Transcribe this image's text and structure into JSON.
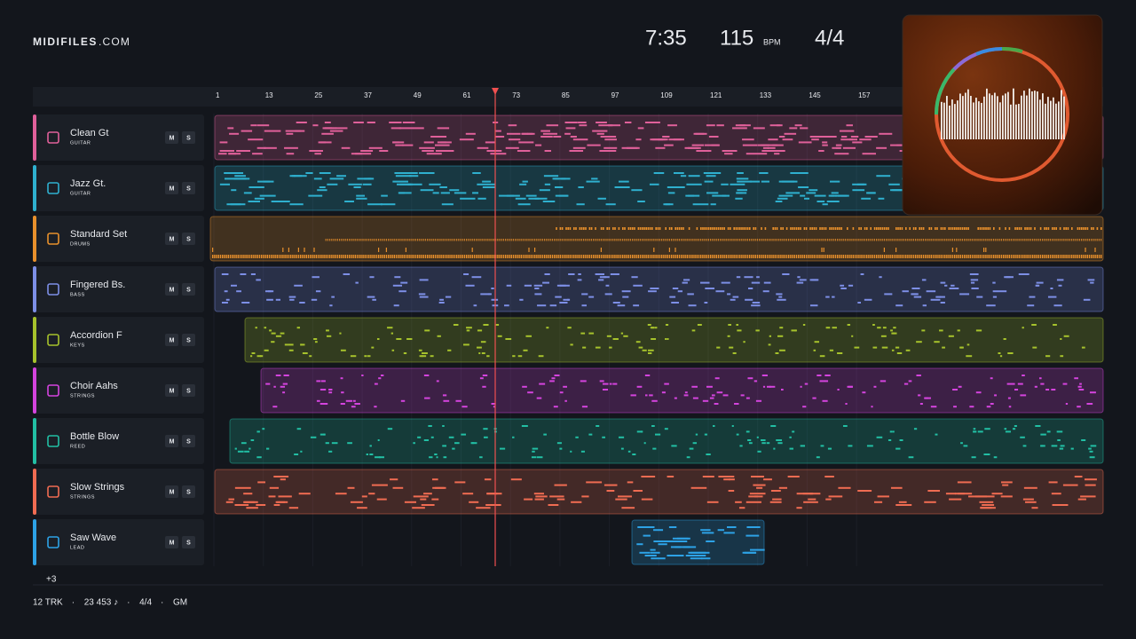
{
  "header": {
    "brand": "MIDIFILES",
    "brand_suffix": ".COM"
  },
  "transport": {
    "time": "7:35",
    "tempo": "115",
    "tempo_unit": "BPM",
    "meter": "4/4"
  },
  "ruler": {
    "marks": [
      "1",
      "13",
      "25",
      "37",
      "49",
      "61",
      "73",
      "85",
      "97",
      "109",
      "121",
      "133",
      "145",
      "157"
    ]
  },
  "tracks": [
    {
      "name": "Clean Gt",
      "category": "GUITAR",
      "mute": "M",
      "solo": "S",
      "color": "#e0609a"
    },
    {
      "name": "Jazz Gt.",
      "category": "GUITAR",
      "mute": "M",
      "solo": "S",
      "color": "#2fb0cf"
    },
    {
      "name": "Standard Set",
      "category": "DRUMS",
      "mute": "M",
      "solo": "S",
      "color": "#e8902c"
    },
    {
      "name": "Fingered Bs.",
      "category": "BASS",
      "mute": "M",
      "solo": "S",
      "color": "#7d8fe6"
    },
    {
      "name": "Accordion F",
      "category": "KEYS",
      "mute": "M",
      "solo": "S",
      "color": "#a6c22c"
    },
    {
      "name": "Choir Aahs",
      "category": "STRINGS",
      "mute": "M",
      "solo": "S",
      "color": "#d444de"
    },
    {
      "name": "Bottle Blow",
      "category": "REED",
      "mute": "M",
      "solo": "S",
      "color": "#22bfa4"
    },
    {
      "name": "Slow Strings",
      "category": "STRINGS",
      "mute": "M",
      "solo": "S",
      "color": "#f06c52"
    },
    {
      "name": "Saw Wave",
      "category": "LEAD",
      "mute": "M",
      "solo": "S",
      "color": "#2da2e6"
    }
  ],
  "hidden_tracks": "+3",
  "footer": {
    "items": [
      "12 TRK",
      "23 453 ♪",
      "4/4",
      "GM"
    ],
    "separator": "·"
  }
}
